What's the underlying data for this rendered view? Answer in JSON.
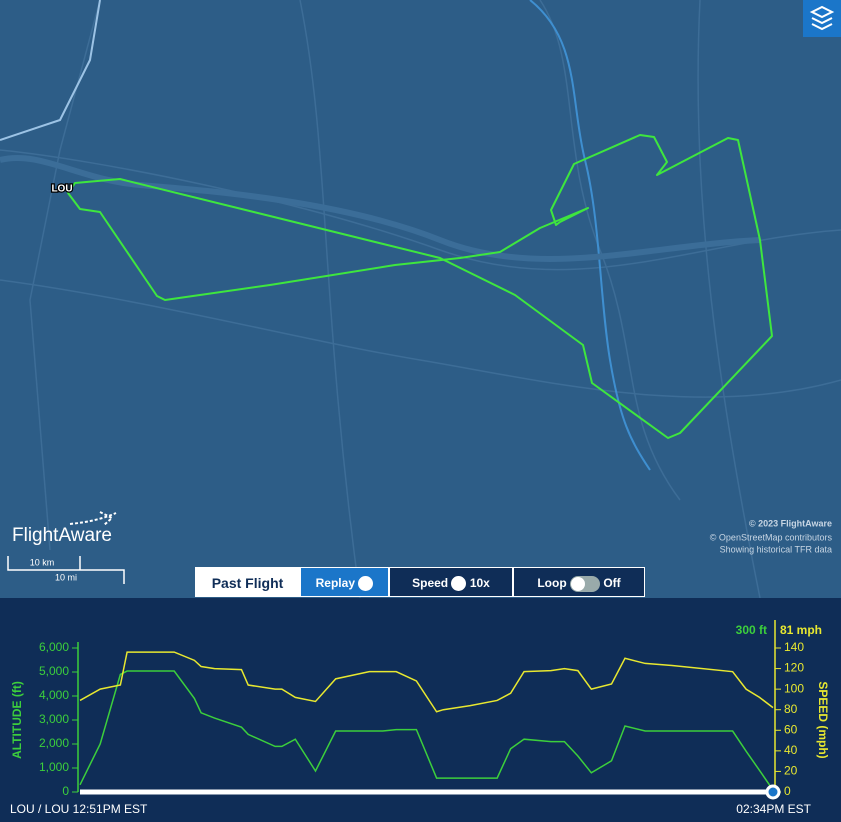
{
  "map": {
    "airport": "LOU",
    "brand": "FlightAware",
    "attribution": [
      "© 2023 FlightAware",
      "© OpenStreetMap contributors",
      "Showing historical TFR data"
    ],
    "scale": [
      "10 km",
      "10 mi"
    ]
  },
  "controls": {
    "past_flight": "Past Flight",
    "replay": "Replay",
    "speed_label": "Speed",
    "speed_value": "10x",
    "loop_label": "Loop",
    "loop_value": "Off"
  },
  "chart_data": {
    "type": "line",
    "y_label": "ALTITUDE (ft)",
    "y2_label": "SPEED (mph)",
    "current_altitude": "300 ft",
    "current_speed": "81 mph",
    "start_label": "LOU / LOU 12:51PM EST",
    "end_label": "02:34PM EST",
    "x": [
      0,
      3,
      6,
      7,
      14,
      17,
      18,
      20,
      24,
      25,
      29,
      30,
      32,
      35,
      38,
      43,
      45,
      47,
      50,
      53,
      54,
      58,
      62,
      64,
      66,
      70,
      72,
      74,
      76,
      79,
      81,
      84,
      88,
      97,
      99,
      101,
      103
    ],
    "xlim": [
      0,
      103
    ],
    "series": [
      {
        "color": "#3ccf3c",
        "values": [
          300,
          2000,
          4900,
          5040,
          5040,
          3900,
          3300,
          3080,
          2700,
          2400,
          1900,
          1900,
          2200,
          875,
          2540,
          2540,
          2540,
          2600,
          2600,
          580,
          580,
          580,
          580,
          1800,
          2200,
          2100,
          2100,
          1500,
          800,
          1300,
          2750,
          2540,
          2540,
          2540,
          1700,
          900,
          80
        ]
      },
      {
        "color": "#e8e830",
        "axis": "y2",
        "values": [
          89,
          100,
          104,
          136,
          136,
          128,
          122,
          120,
          119,
          104,
          100,
          100,
          92,
          88,
          110,
          117,
          117,
          117,
          108,
          78,
          80,
          84,
          89,
          96,
          117,
          118,
          120,
          118,
          100,
          105,
          130,
          125,
          123,
          117,
          100,
          92,
          82
        ]
      }
    ],
    "ylim": [
      0,
      6000
    ],
    "yticks": [
      0,
      {
        "value": 1000,
        "label": "1,000"
      },
      {
        "value": 2000,
        "label": "2,000"
      },
      {
        "value": 3000,
        "label": "3,000"
      },
      {
        "value": 4000,
        "label": "4,000"
      },
      {
        "value": 5000,
        "label": "5,000"
      },
      {
        "value": 6000,
        "label": "6,000"
      }
    ],
    "y2lim": [
      0,
      140
    ],
    "y2ticks": [
      0,
      20,
      40,
      60,
      80,
      100,
      120,
      140
    ]
  }
}
